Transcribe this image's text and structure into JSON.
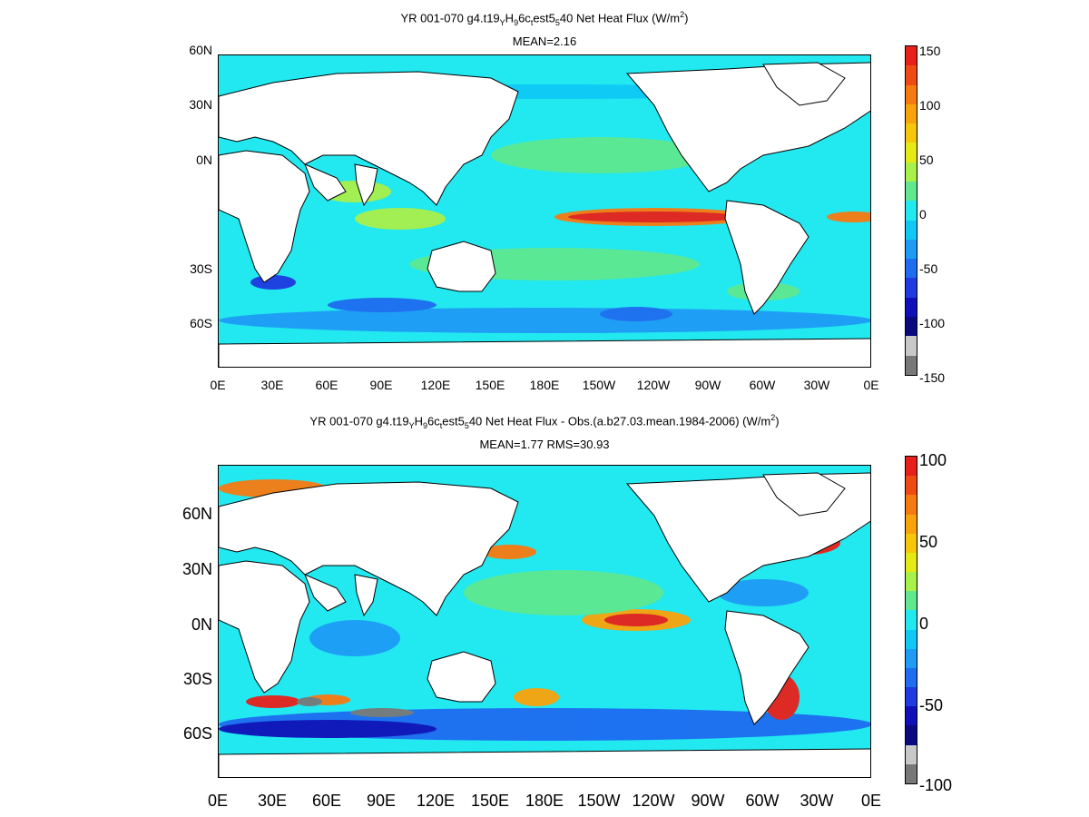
{
  "panels": [
    {
      "title_prefix": "YR 001-070  g4.t19",
      "title_sub1": "Y",
      "title_mid1": "H",
      "title_sub2": "9",
      "title_mid2": "6c",
      "title_sub3": "t",
      "title_mid3": "est5",
      "title_sub4": "5",
      "title_suffix": "40  Net Heat Flux (W/m",
      "title_sup": "2",
      "title_close": ")",
      "subtitle": "MEAN=2.16",
      "lat_labels": [
        "60N",
        "30N",
        "0N",
        "30S",
        "60S"
      ],
      "lon_labels": [
        "0E",
        "30E",
        "60E",
        "90E",
        "120E",
        "150E",
        "180E",
        "150W",
        "120W",
        "90W",
        "60W",
        "30W",
        "0E"
      ],
      "colorbar_ticks": [
        "150",
        "100",
        "50",
        "0",
        "-50",
        "-100",
        "-150"
      ]
    },
    {
      "title_prefix": "YR 001-070  g4.t19",
      "title_sub1": "Y",
      "title_mid1": "H",
      "title_sub2": "9",
      "title_mid2": "6c",
      "title_sub3": "t",
      "title_mid3": "est5",
      "title_sub4": "5",
      "title_suffix": "40  Net Heat Flux - Obs.(a.b27.03.mean.1984-2006) (W/m",
      "title_sup": "2",
      "title_close": ")",
      "subtitle": "MEAN=1.77 RMS=30.93",
      "lat_labels": [
        "60N",
        "30N",
        "0N",
        "30S",
        "60S"
      ],
      "lon_labels": [
        "0E",
        "30E",
        "60E",
        "90E",
        "120E",
        "150E",
        "180E",
        "150W",
        "120W",
        "90W",
        "60W",
        "30W",
        "0E"
      ],
      "colorbar_ticks": [
        "100",
        "50",
        "0",
        "-50",
        "-100"
      ]
    }
  ],
  "colors": {
    "ocean": "#22e8f0",
    "land": "#ffffff",
    "colorbar": [
      "#e8201a",
      "#f04a14",
      "#f77a10",
      "#f9a30c",
      "#f5c60a",
      "#e6ea14",
      "#a8f04a",
      "#5fe890",
      "#22e8f0",
      "#10c8f5",
      "#1e9bf5",
      "#1e6cf0",
      "#1e3ae0",
      "#1010b8",
      "#0a0a80",
      "#c8c8c8",
      "#787878"
    ]
  }
}
